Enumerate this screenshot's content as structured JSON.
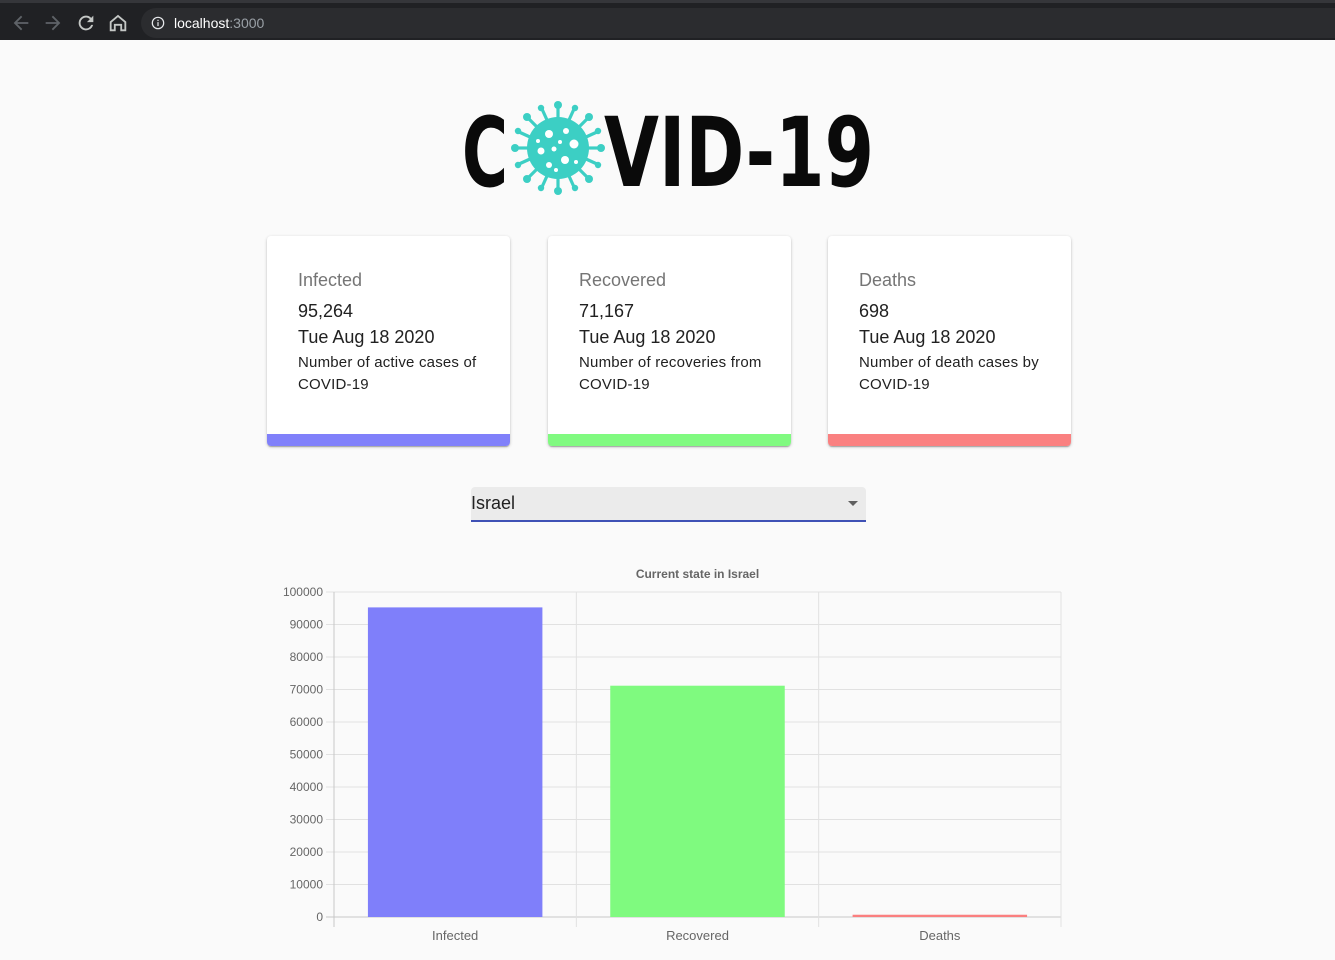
{
  "browser": {
    "url_host": "localhost",
    "url_port": ":3000",
    "icons": [
      "back-arrow-icon",
      "forward-arrow-icon",
      "reload-icon",
      "home-icon",
      "info-icon"
    ]
  },
  "logo": {
    "text_before": "C",
    "text_after": "VID-19",
    "virus_color": "#3ccfc4"
  },
  "cards": [
    {
      "title": "Infected",
      "value": "95,264",
      "date": "Tue Aug 18 2020",
      "description": "Number of active cases of COVID-19",
      "color": "#8080fa"
    },
    {
      "title": "Recovered",
      "value": "71,167",
      "date": "Tue Aug 18 2020",
      "description": "Number of recoveries from COVID-19",
      "color": "#80fa80"
    },
    {
      "title": "Deaths",
      "value": "698",
      "date": "Tue Aug 18 2020",
      "description": "Number of death cases by COVID-19",
      "color": "#fa8080"
    }
  ],
  "country_select": {
    "selected": "Israel",
    "accent": "#3f51b5"
  },
  "chart_data": {
    "type": "bar",
    "title": "Current state in Israel",
    "categories": [
      "Infected",
      "Recovered",
      "Deaths"
    ],
    "values": [
      95264,
      71167,
      698
    ],
    "colors": [
      "#7f7ffa",
      "#7ffa7f",
      "#fa7f7f"
    ],
    "ylim": [
      0,
      100000
    ],
    "yticks": [
      0,
      10000,
      20000,
      30000,
      40000,
      50000,
      60000,
      70000,
      80000,
      90000,
      100000
    ],
    "grid": true,
    "legend": "none",
    "xlabel": "",
    "ylabel": ""
  }
}
